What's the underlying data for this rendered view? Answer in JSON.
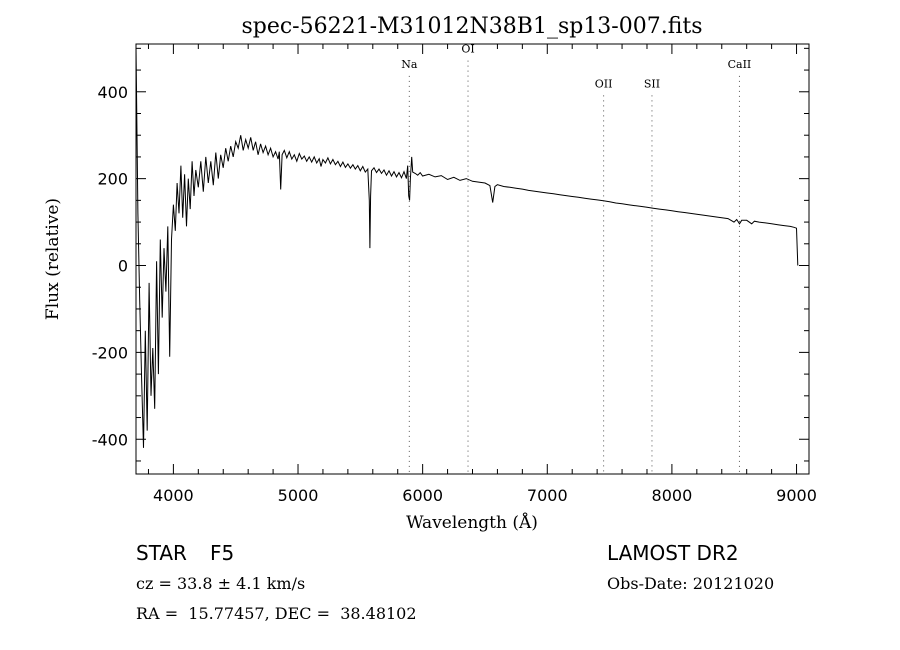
{
  "chart_data": {
    "type": "line",
    "title": "spec-56221-M31012N38B1_sp13-007.fits",
    "xlabel": "Wavelength (Å)",
    "ylabel": "Flux (relative)",
    "xlim": [
      3700,
      9100
    ],
    "ylim": [
      -480,
      510
    ],
    "xticks": [
      4000,
      5000,
      6000,
      7000,
      8000,
      9000
    ],
    "yticks": [
      -400,
      -200,
      0,
      200,
      400
    ],
    "grid": false,
    "series": [
      {
        "points": [
          [
            3700,
            505
          ],
          [
            3715,
            120
          ],
          [
            3730,
            -80
          ],
          [
            3745,
            -260
          ],
          [
            3760,
            -420
          ],
          [
            3775,
            -150
          ],
          [
            3790,
            -380
          ],
          [
            3805,
            -40
          ],
          [
            3820,
            -300
          ],
          [
            3835,
            -190
          ],
          [
            3850,
            -330
          ],
          [
            3865,
            10
          ],
          [
            3880,
            -250
          ],
          [
            3895,
            60
          ],
          [
            3910,
            -120
          ],
          [
            3925,
            40
          ],
          [
            3940,
            -60
          ],
          [
            3955,
            90
          ],
          [
            3970,
            -210
          ],
          [
            3985,
            60
          ],
          [
            4000,
            140
          ],
          [
            4015,
            80
          ],
          [
            4030,
            190
          ],
          [
            4045,
            120
          ],
          [
            4060,
            230
          ],
          [
            4075,
            110
          ],
          [
            4090,
            210
          ],
          [
            4105,
            90
          ],
          [
            4120,
            200
          ],
          [
            4135,
            130
          ],
          [
            4150,
            240
          ],
          [
            4165,
            160
          ],
          [
            4180,
            220
          ],
          [
            4200,
            180
          ],
          [
            4220,
            240
          ],
          [
            4240,
            170
          ],
          [
            4260,
            250
          ],
          [
            4280,
            190
          ],
          [
            4300,
            240
          ],
          [
            4320,
            185
          ],
          [
            4340,
            260
          ],
          [
            4360,
            200
          ],
          [
            4380,
            255
          ],
          [
            4400,
            225
          ],
          [
            4420,
            270
          ],
          [
            4440,
            240
          ],
          [
            4460,
            275
          ],
          [
            4480,
            250
          ],
          [
            4500,
            285
          ],
          [
            4520,
            270
          ],
          [
            4540,
            300
          ],
          [
            4560,
            265
          ],
          [
            4580,
            290
          ],
          [
            4600,
            270
          ],
          [
            4620,
            295
          ],
          [
            4640,
            265
          ],
          [
            4660,
            285
          ],
          [
            4680,
            255
          ],
          [
            4700,
            280
          ],
          [
            4720,
            260
          ],
          [
            4740,
            275
          ],
          [
            4760,
            255
          ],
          [
            4780,
            270
          ],
          [
            4800,
            250
          ],
          [
            4820,
            262
          ],
          [
            4840,
            245
          ],
          [
            4850,
            262
          ],
          [
            4861,
            175
          ],
          [
            4872,
            255
          ],
          [
            4890,
            265
          ],
          [
            4910,
            248
          ],
          [
            4930,
            262
          ],
          [
            4950,
            245
          ],
          [
            4970,
            255
          ],
          [
            4990,
            240
          ],
          [
            5010,
            258
          ],
          [
            5030,
            245
          ],
          [
            5050,
            252
          ],
          [
            5070,
            240
          ],
          [
            5090,
            250
          ],
          [
            5110,
            238
          ],
          [
            5130,
            250
          ],
          [
            5150,
            236
          ],
          [
            5170,
            246
          ],
          [
            5184,
            228
          ],
          [
            5200,
            244
          ],
          [
            5220,
            236
          ],
          [
            5240,
            248
          ],
          [
            5260,
            234
          ],
          [
            5280,
            244
          ],
          [
            5300,
            232
          ],
          [
            5320,
            240
          ],
          [
            5340,
            228
          ],
          [
            5360,
            238
          ],
          [
            5380,
            226
          ],
          [
            5400,
            234
          ],
          [
            5420,
            224
          ],
          [
            5440,
            232
          ],
          [
            5460,
            222
          ],
          [
            5480,
            230
          ],
          [
            5500,
            218
          ],
          [
            5520,
            228
          ],
          [
            5540,
            215
          ],
          [
            5560,
            222
          ],
          [
            5572,
            150
          ],
          [
            5577,
            40
          ],
          [
            5582,
            160
          ],
          [
            5590,
            218
          ],
          [
            5610,
            225
          ],
          [
            5630,
            214
          ],
          [
            5650,
            222
          ],
          [
            5670,
            212
          ],
          [
            5690,
            220
          ],
          [
            5710,
            208
          ],
          [
            5730,
            218
          ],
          [
            5750,
            206
          ],
          [
            5770,
            216
          ],
          [
            5790,
            204
          ],
          [
            5810,
            214
          ],
          [
            5830,
            202
          ],
          [
            5850,
            216
          ],
          [
            5870,
            200
          ],
          [
            5880,
            230
          ],
          [
            5888,
            160
          ],
          [
            5895,
            150
          ],
          [
            5902,
            200
          ],
          [
            5912,
            250
          ],
          [
            5920,
            215
          ],
          [
            5940,
            212
          ],
          [
            5960,
            208
          ],
          [
            5980,
            214
          ],
          [
            6000,
            206
          ],
          [
            6050,
            210
          ],
          [
            6100,
            204
          ],
          [
            6150,
            207
          ],
          [
            6200,
            198
          ],
          [
            6250,
            203
          ],
          [
            6300,
            196
          ],
          [
            6350,
            200
          ],
          [
            6400,
            194
          ],
          [
            6450,
            192
          ],
          [
            6500,
            190
          ],
          [
            6540,
            184
          ],
          [
            6562,
            145
          ],
          [
            6580,
            182
          ],
          [
            6600,
            186
          ],
          [
            6650,
            182
          ],
          [
            6700,
            180
          ],
          [
            6750,
            178
          ],
          [
            6800,
            176
          ],
          [
            6850,
            173
          ],
          [
            6900,
            171
          ],
          [
            6950,
            169
          ],
          [
            7000,
            167
          ],
          [
            7050,
            165
          ],
          [
            7100,
            163
          ],
          [
            7150,
            161
          ],
          [
            7200,
            159
          ],
          [
            7250,
            157
          ],
          [
            7300,
            155
          ],
          [
            7350,
            153
          ],
          [
            7400,
            151
          ],
          [
            7450,
            149
          ],
          [
            7500,
            147
          ],
          [
            7550,
            144
          ],
          [
            7600,
            142
          ],
          [
            7650,
            140
          ],
          [
            7700,
            138
          ],
          [
            7750,
            136
          ],
          [
            7800,
            134
          ],
          [
            7850,
            132
          ],
          [
            7900,
            130
          ],
          [
            7950,
            128
          ],
          [
            8000,
            126
          ],
          [
            8050,
            124
          ],
          [
            8100,
            122
          ],
          [
            8150,
            120
          ],
          [
            8200,
            118
          ],
          [
            8250,
            116
          ],
          [
            8300,
            114
          ],
          [
            8350,
            112
          ],
          [
            8400,
            110
          ],
          [
            8450,
            108
          ],
          [
            8498,
            100
          ],
          [
            8520,
            106
          ],
          [
            8542,
            96
          ],
          [
            8560,
            104
          ],
          [
            8600,
            104
          ],
          [
            8640,
            96
          ],
          [
            8662,
            102
          ],
          [
            8700,
            100
          ],
          [
            8750,
            98
          ],
          [
            8800,
            96
          ],
          [
            8850,
            94
          ],
          [
            8900,
            92
          ],
          [
            8950,
            90
          ],
          [
            8980,
            88
          ],
          [
            9000,
            86
          ],
          [
            9010,
            0
          ]
        ]
      }
    ],
    "line_markers": [
      {
        "label": "Na",
        "x": 5893,
        "label_y": 455
      },
      {
        "label": "OI",
        "x": 6364,
        "label_y": 490
      },
      {
        "label": "OII",
        "x": 7452,
        "label_y": 410
      },
      {
        "label": "SII",
        "x": 7840,
        "label_y": 410
      },
      {
        "label": "CaII",
        "x": 8542,
        "label_y": 455
      }
    ]
  },
  "info": {
    "object_class": "STAR",
    "subclass": "F5",
    "survey": "LAMOST DR2",
    "redshift": "cz = 33.8 ± 4.1 km/s",
    "obs_date": "Obs-Date: 20121020",
    "coords": "RA =  15.77457, DEC =  38.48102"
  }
}
